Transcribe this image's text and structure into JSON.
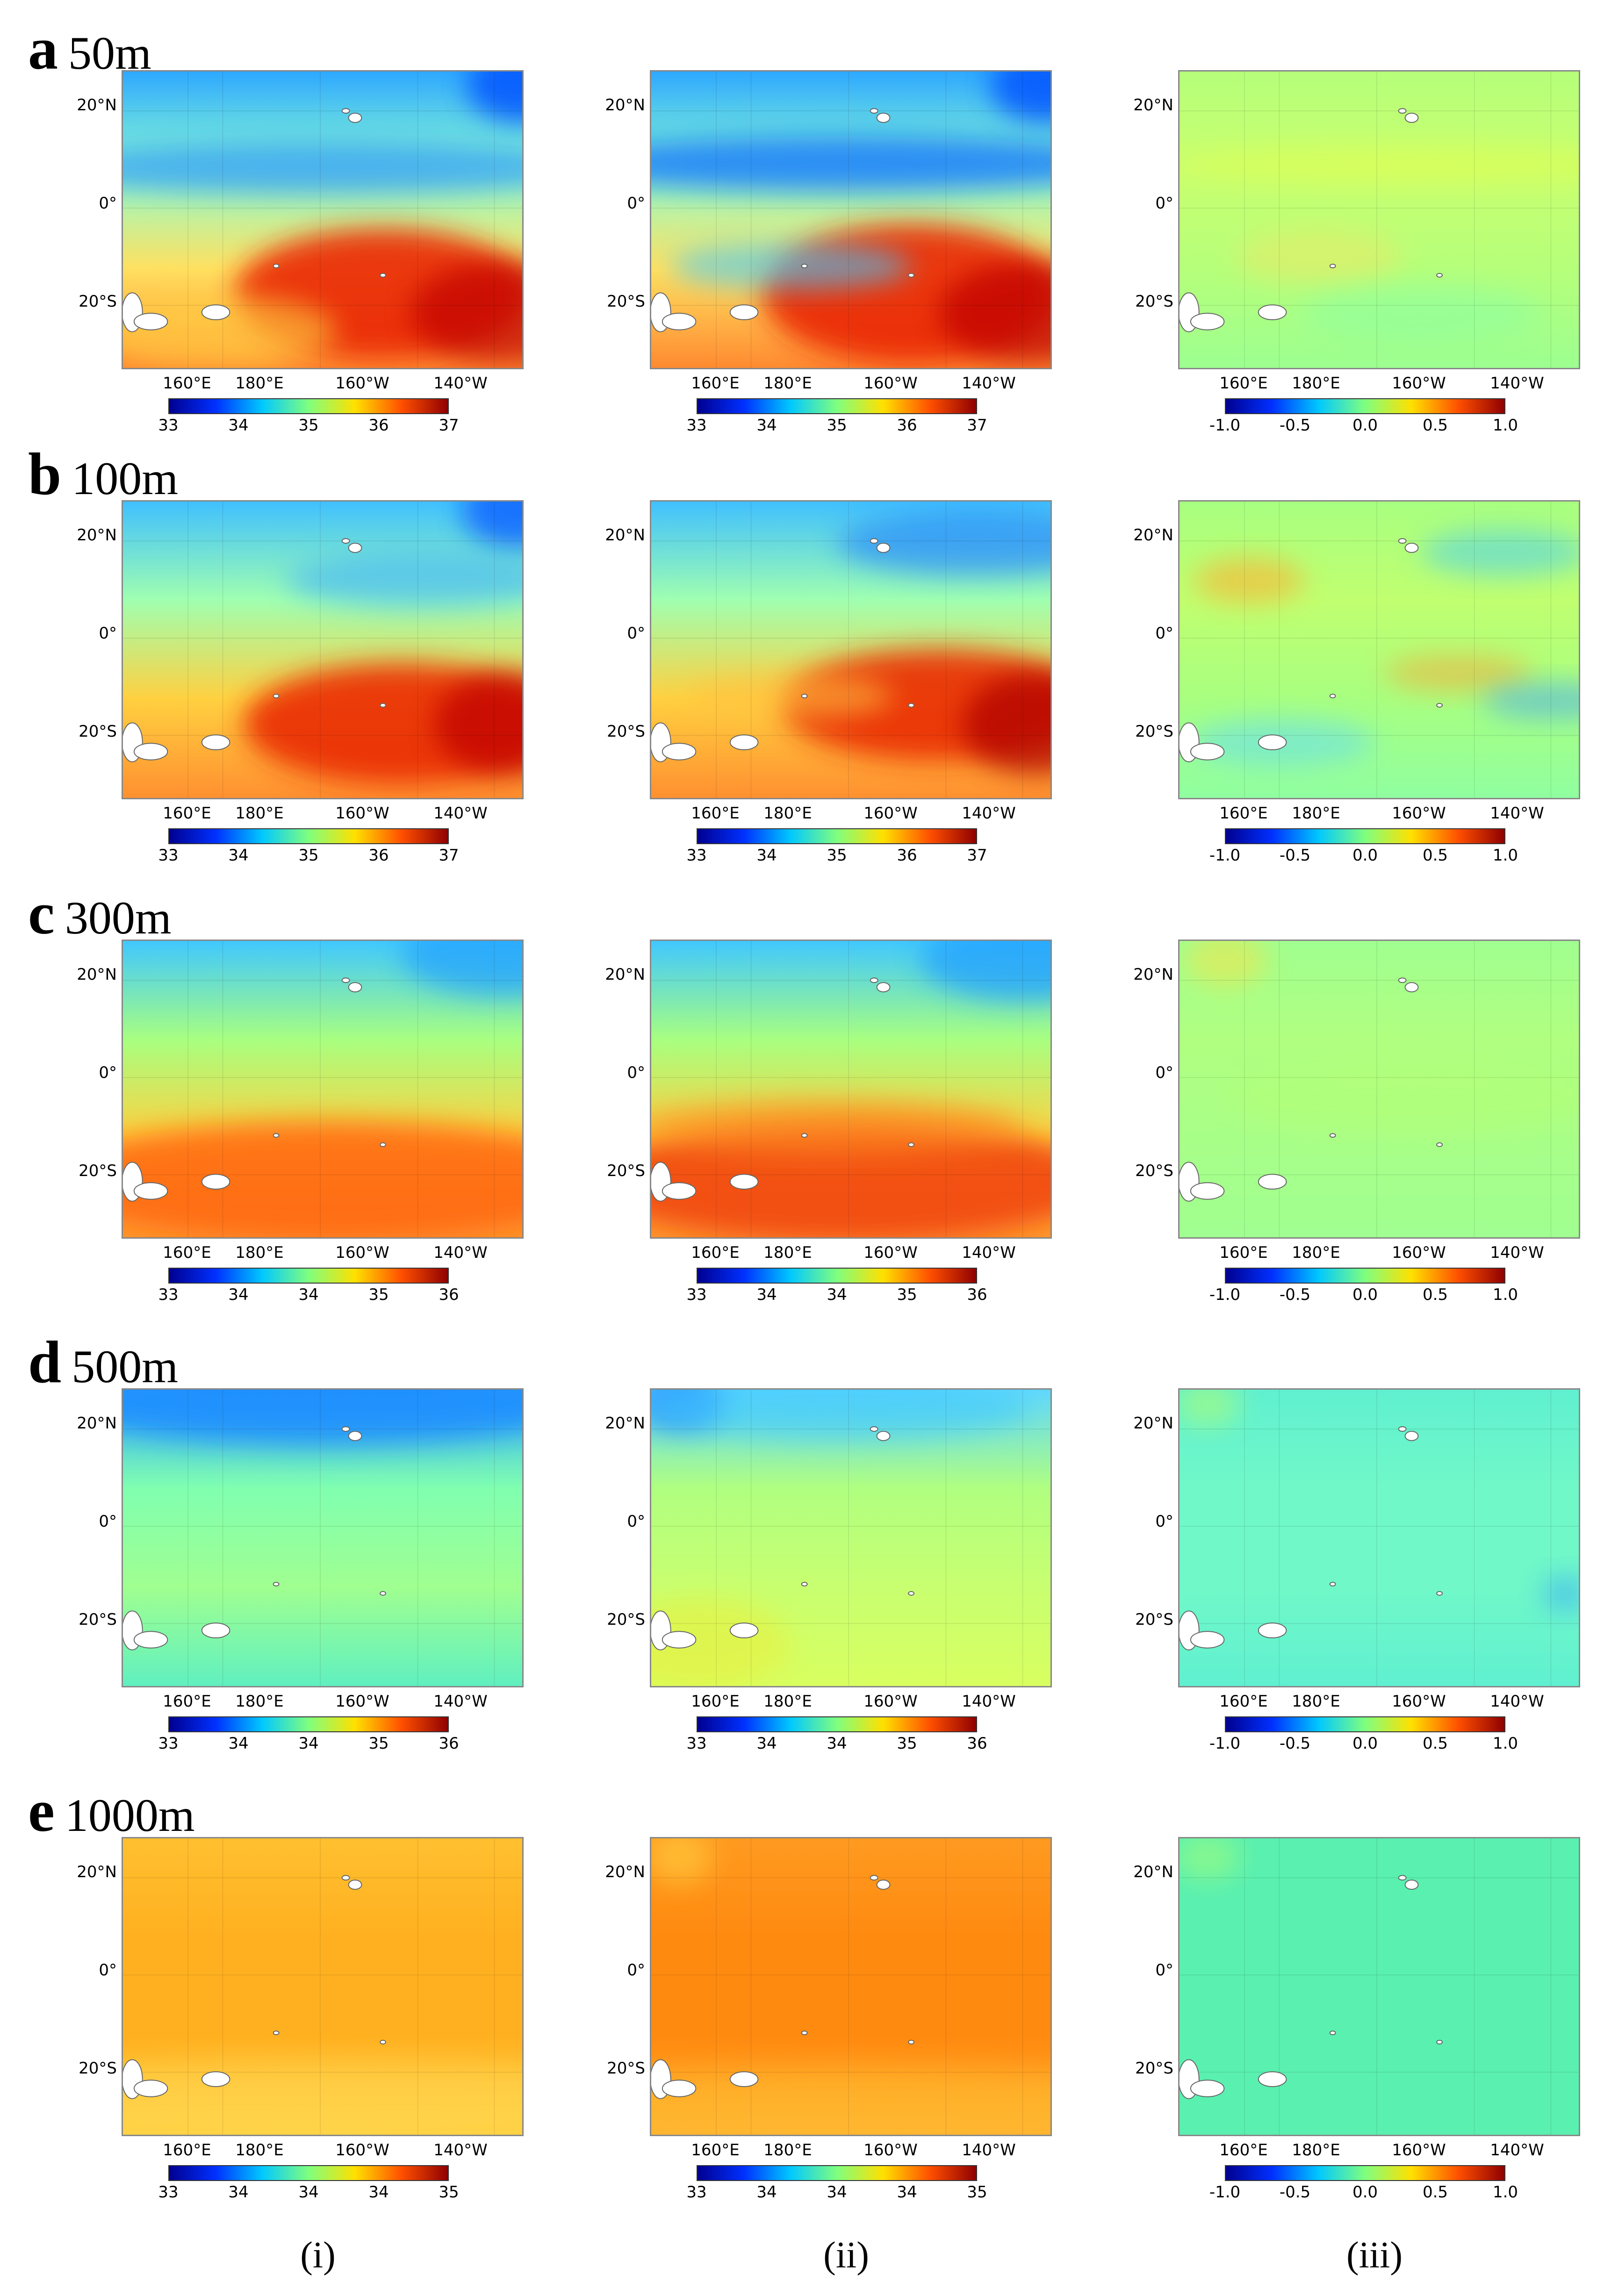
{
  "figure": {
    "columns": [
      "(i)",
      "(ii)",
      "(iii)"
    ],
    "lat_labels": [
      "20°N",
      "0°",
      "20°S"
    ],
    "lon_labels": [
      "160°E",
      "180°E",
      "160°W",
      "140°W"
    ],
    "rows": [
      {
        "letter": "a",
        "depth": "50m",
        "colorbars": [
          [
            "33",
            "34",
            "35",
            "36",
            "37"
          ],
          [
            "33",
            "34",
            "35",
            "36",
            "37"
          ],
          [
            "-1.0",
            "-0.5",
            "0.0",
            "0.5",
            "1.0"
          ]
        ]
      },
      {
        "letter": "b",
        "depth": "100m",
        "colorbars": [
          [
            "33",
            "34",
            "35",
            "36",
            "37"
          ],
          [
            "33",
            "34",
            "35",
            "36",
            "37"
          ],
          [
            "-1.0",
            "-0.5",
            "0.0",
            "0.5",
            "1.0"
          ]
        ]
      },
      {
        "letter": "c",
        "depth": "300m",
        "colorbars": [
          [
            "33",
            "34",
            "34",
            "35",
            "36"
          ],
          [
            "33",
            "34",
            "34",
            "35",
            "36"
          ],
          [
            "-1.0",
            "-0.5",
            "0.0",
            "0.5",
            "1.0"
          ]
        ]
      },
      {
        "letter": "d",
        "depth": "500m",
        "colorbars": [
          [
            "33",
            "34",
            "34",
            "35",
            "36"
          ],
          [
            "33",
            "34",
            "34",
            "35",
            "36"
          ],
          [
            "-1.0",
            "-0.5",
            "0.0",
            "0.5",
            "1.0"
          ]
        ]
      },
      {
        "letter": "e",
        "depth": "1000m",
        "colorbars": [
          [
            "33",
            "34",
            "34",
            "34",
            "35"
          ],
          [
            "33",
            "34",
            "34",
            "34",
            "35"
          ],
          [
            "-1.0",
            "-0.5",
            "0.0",
            "0.5",
            "1.0"
          ]
        ]
      }
    ]
  },
  "colormap": [
    "#00008f",
    "#0030ff",
    "#00c8ff",
    "#7fff7f",
    "#ffe000",
    "#ff5000",
    "#8f0000"
  ]
}
